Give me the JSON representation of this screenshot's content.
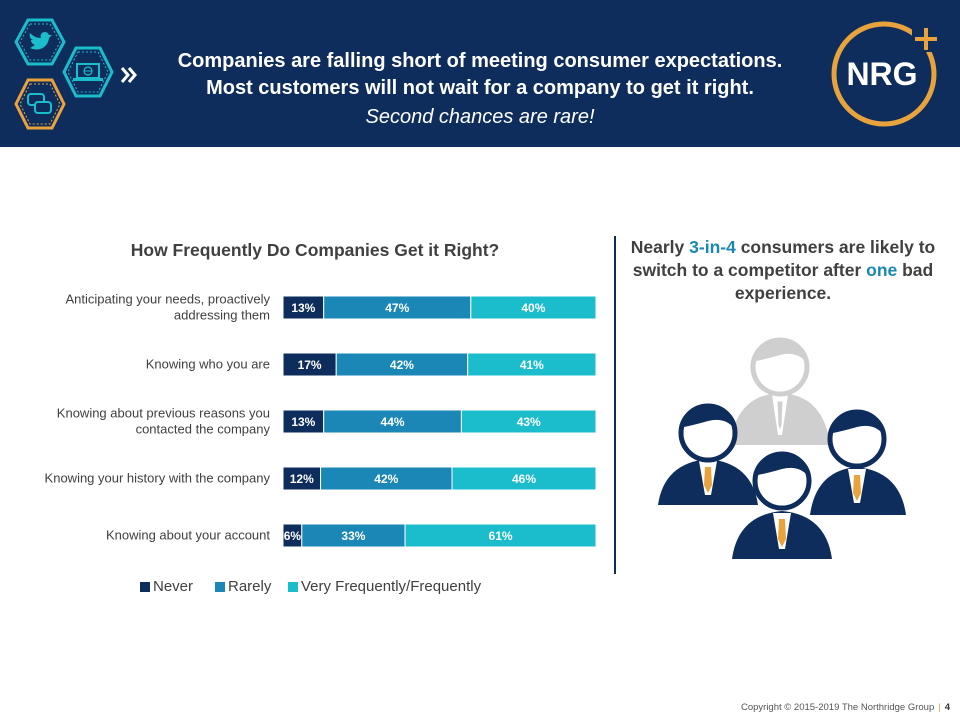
{
  "header": {
    "line1": "Companies are falling short of meeting consumer expectations.",
    "line2": "Most customers will not wait for a company to get it right.",
    "line3": "Second chances are rare!",
    "logo_text": "NRG",
    "icons": [
      "twitter-icon",
      "laptop-globe-icon",
      "chat-bubbles-icon",
      "double-chevron-icon"
    ]
  },
  "colors": {
    "banner": "#0e2d5c",
    "never": "#0e2d5c",
    "rarely": "#1b87b6",
    "frequently": "#1bbccc",
    "accent": "#e8a33d"
  },
  "chart_data": {
    "type": "bar",
    "orientation": "horizontal-stacked-100",
    "title": "How Frequently Do Companies Get it Right?",
    "categories": [
      [
        "Anticipating your needs, proactively",
        "addressing them"
      ],
      [
        "Knowing who you are"
      ],
      [
        "Knowing about previous reasons you",
        "contacted the company"
      ],
      [
        "Knowing your history with the company"
      ],
      [
        "Knowing about your account"
      ]
    ],
    "series": [
      {
        "name": "Never",
        "color": "#0e2d5c",
        "values": [
          13,
          17,
          13,
          12,
          6
        ]
      },
      {
        "name": "Rarely",
        "color": "#1b87b6",
        "values": [
          47,
          42,
          44,
          42,
          33
        ]
      },
      {
        "name": "Very Frequently/Frequently",
        "color": "#1bbccc",
        "values": [
          40,
          41,
          43,
          46,
          61
        ]
      }
    ],
    "unit": "%",
    "xlim": [
      0,
      100
    ],
    "legend": "bottom"
  },
  "callout": {
    "part1": "Nearly ",
    "highlight1": "3-in-4",
    "part2": " consumers are likely to switch to a competitor after ",
    "highlight2": "one",
    "part3": " bad experience."
  },
  "footer": {
    "copyright": "Copyright © 2015-2019 The Northridge Group",
    "page": "4"
  }
}
